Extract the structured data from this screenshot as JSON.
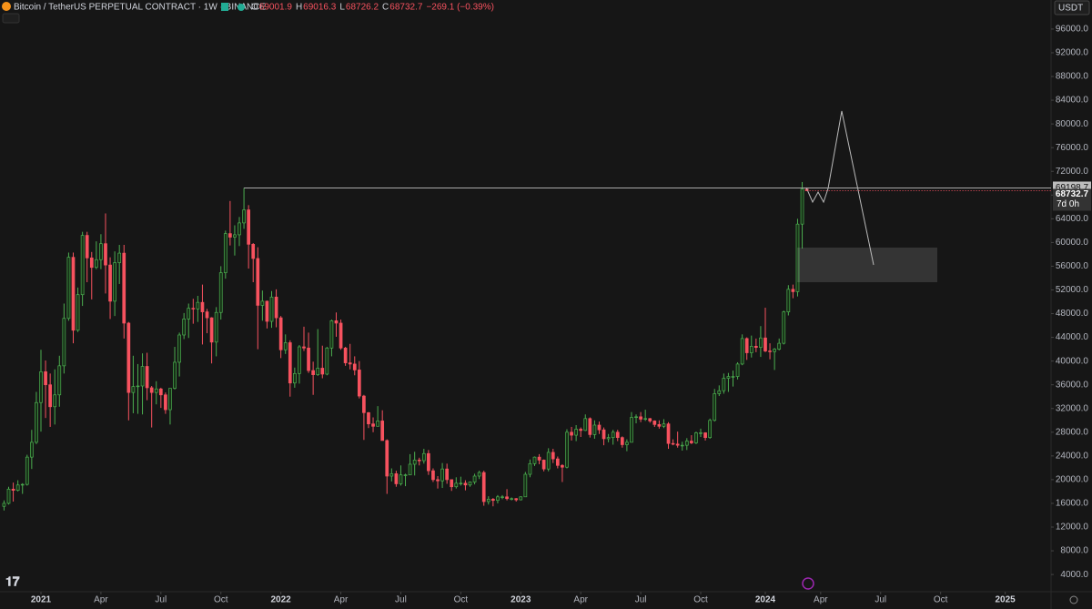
{
  "chart_data": {
    "type": "candlestick",
    "title": "Bitcoin / TetherUS PERPETUAL CONTRACT · 1W · BINANCE",
    "legend_keys": [
      "O",
      "H",
      "L",
      "C"
    ],
    "change": "−269.1 (−0.39%)",
    "currency": "USDT",
    "countdown": "7d 0h",
    "up_color": "#4caf50",
    "down_color": "#f7525f",
    "ylim": [
      1100,
      100900
    ],
    "yticks": [
      {
        "value": 4000,
        "label": "4000.0"
      },
      {
        "value": 8000,
        "label": "8000.0"
      },
      {
        "value": 12000,
        "label": "12000.0"
      },
      {
        "value": 16000,
        "label": "16000.0"
      },
      {
        "value": 20000,
        "label": "20000.0"
      },
      {
        "value": 24000,
        "label": "24000.0"
      },
      {
        "value": 28000,
        "label": "28000.0"
      },
      {
        "value": 32000,
        "label": "32000.0"
      },
      {
        "value": 36000,
        "label": "36000.0"
      },
      {
        "value": 40000,
        "label": "40000.0"
      },
      {
        "value": 44000,
        "label": "44000.0"
      },
      {
        "value": 48000,
        "label": "48000.0"
      },
      {
        "value": 52000,
        "label": "52000.0"
      },
      {
        "value": 56000,
        "label": "56000.0"
      },
      {
        "value": 60000,
        "label": "60000.0"
      },
      {
        "value": 64000,
        "label": "64000.0"
      },
      {
        "value": 68000,
        "label": "68000.0"
      },
      {
        "value": 72000,
        "label": "72000.0"
      },
      {
        "value": 76000,
        "label": "76000.0"
      },
      {
        "value": 80000,
        "label": "80000.0"
      },
      {
        "value": 84000,
        "label": "84000.0"
      },
      {
        "value": 88000,
        "label": "88000.0"
      },
      {
        "value": 92000,
        "label": "92000.0"
      },
      {
        "value": 96000,
        "label": "96000.0"
      }
    ],
    "xticks": [
      {
        "value": 8,
        "label": "2021"
      },
      {
        "value": 21,
        "label": "Apr"
      },
      {
        "value": 34,
        "label": "Jul"
      },
      {
        "value": 47,
        "label": "Oct"
      },
      {
        "value": 60,
        "label": "2022"
      },
      {
        "value": 73,
        "label": "Apr"
      },
      {
        "value": 86,
        "label": "Jul"
      },
      {
        "value": 99,
        "label": "Oct"
      },
      {
        "value": 112,
        "label": "2023"
      },
      {
        "value": 125,
        "label": "Apr"
      },
      {
        "value": 138,
        "label": "Jul"
      },
      {
        "value": 151,
        "label": "Oct"
      },
      {
        "value": 165,
        "label": "2024"
      },
      {
        "value": 177,
        "label": "Apr"
      },
      {
        "value": 190,
        "label": "Jul"
      },
      {
        "value": 203,
        "label": "Oct"
      },
      {
        "value": 217,
        "label": "2025"
      }
    ],
    "horizontal_line": 69198.7,
    "candles": [
      [
        15500,
        16500,
        14800,
        16000
      ],
      [
        16000,
        18800,
        15800,
        18400
      ],
      [
        18400,
        19500,
        16300,
        18200
      ],
      [
        18200,
        19900,
        18000,
        19100
      ],
      [
        19100,
        19400,
        17600,
        19200
      ],
      [
        19200,
        24200,
        19000,
        23800
      ],
      [
        23800,
        28400,
        21800,
        26300
      ],
      [
        26300,
        34800,
        26000,
        33000
      ],
      [
        33000,
        41900,
        28100,
        38200
      ],
      [
        38200,
        40100,
        30400,
        36000
      ],
      [
        36000,
        37900,
        28900,
        32300
      ],
      [
        32300,
        38600,
        29300,
        34300
      ],
      [
        34300,
        40900,
        32300,
        39200
      ],
      [
        39200,
        49700,
        37900,
        47200
      ],
      [
        47200,
        58300,
        46800,
        57500
      ],
      [
        57500,
        58300,
        43000,
        45200
      ],
      [
        45200,
        52400,
        44900,
        51200
      ],
      [
        51200,
        61800,
        49300,
        61200
      ],
      [
        61200,
        61800,
        53300,
        57400
      ],
      [
        57400,
        58400,
        50400,
        55800
      ],
      [
        55800,
        60200,
        55500,
        57100
      ],
      [
        57100,
        61400,
        55500,
        59800
      ],
      [
        59800,
        64900,
        51400,
        56200
      ],
      [
        56200,
        57500,
        47100,
        50100
      ],
      [
        50100,
        58500,
        47600,
        56600
      ],
      [
        56600,
        59600,
        53000,
        58200
      ],
      [
        58200,
        59600,
        43800,
        46400
      ],
      [
        46400,
        46600,
        30000,
        34700
      ],
      [
        34700,
        40900,
        31200,
        35700
      ],
      [
        35700,
        39500,
        31100,
        35800
      ],
      [
        35800,
        41300,
        31000,
        39100
      ],
      [
        39100,
        41400,
        33400,
        35500
      ],
      [
        35500,
        35800,
        28800,
        34700
      ],
      [
        34700,
        36600,
        32700,
        35300
      ],
      [
        35300,
        35500,
        32100,
        34300
      ],
      [
        34300,
        34700,
        31100,
        31800
      ],
      [
        31800,
        35400,
        29300,
        35400
      ],
      [
        35400,
        42400,
        35200,
        39800
      ],
      [
        39800,
        44800,
        37400,
        44400
      ],
      [
        44400,
        48100,
        43700,
        47100
      ],
      [
        47100,
        49700,
        43900,
        48900
      ],
      [
        48900,
        50500,
        46300,
        48800
      ],
      [
        48800,
        51000,
        46600,
        49900
      ],
      [
        49900,
        52900,
        42800,
        48300
      ],
      [
        48300,
        48800,
        44700,
        47300
      ],
      [
        47300,
        47400,
        39600,
        43200
      ],
      [
        43200,
        49100,
        40800,
        48200
      ],
      [
        48200,
        56000,
        47000,
        54900
      ],
      [
        54900,
        62000,
        53900,
        61500
      ],
      [
        61500,
        67000,
        59500,
        60900
      ],
      [
        60900,
        62900,
        57800,
        61300
      ],
      [
        61300,
        64300,
        59400,
        63300
      ],
      [
        63300,
        69198.7,
        62300,
        65500
      ],
      [
        65500,
        66300,
        55600,
        59700
      ],
      [
        59700,
        59900,
        53300,
        57300
      ],
      [
        57300,
        59200,
        42000,
        49400
      ],
      [
        49400,
        51900,
        46800,
        50100
      ],
      [
        50100,
        50200,
        45500,
        46700
      ],
      [
        46700,
        51800,
        45600,
        50800
      ],
      [
        50800,
        52100,
        45700,
        47300
      ],
      [
        47300,
        47600,
        40500,
        41900
      ],
      [
        41900,
        44500,
        41200,
        43100
      ],
      [
        43100,
        43500,
        34000,
        36300
      ],
      [
        36300,
        38900,
        35500,
        37900
      ],
      [
        37900,
        42700,
        36200,
        42400
      ],
      [
        42400,
        45800,
        41700,
        42200
      ],
      [
        42200,
        44800,
        38000,
        38400
      ],
      [
        38400,
        39900,
        34300,
        37700
      ],
      [
        37700,
        45400,
        37500,
        38800
      ],
      [
        38800,
        42600,
        37100,
        37800
      ],
      [
        37800,
        42400,
        37600,
        42200
      ],
      [
        42200,
        47000,
        40800,
        46800
      ],
      [
        46800,
        48200,
        44100,
        46400
      ],
      [
        46400,
        47000,
        41900,
        42200
      ],
      [
        42200,
        42400,
        39200,
        39700
      ],
      [
        39700,
        42900,
        38600,
        39500
      ],
      [
        39500,
        40800,
        37600,
        38500
      ],
      [
        38500,
        40000,
        33700,
        34100
      ],
      [
        34100,
        34300,
        26700,
        31300
      ],
      [
        31300,
        31400,
        28700,
        29400
      ],
      [
        29400,
        30500,
        28000,
        29000
      ],
      [
        29000,
        32400,
        29000,
        29900
      ],
      [
        29900,
        31700,
        26600,
        26600
      ],
      [
        26600,
        26800,
        17600,
        20600
      ],
      [
        20600,
        21900,
        19700,
        21000
      ],
      [
        21000,
        21500,
        18800,
        19300
      ],
      [
        19300,
        22400,
        19000,
        20800
      ],
      [
        20800,
        21000,
        18900,
        20800
      ],
      [
        20800,
        24300,
        20800,
        22600
      ],
      [
        22600,
        24700,
        20700,
        23300
      ],
      [
        23300,
        23700,
        22400,
        23200
      ],
      [
        23200,
        25200,
        22700,
        24400
      ],
      [
        24400,
        25000,
        20800,
        21500
      ],
      [
        21500,
        21900,
        19600,
        20000
      ],
      [
        20000,
        20600,
        18500,
        19800
      ],
      [
        19800,
        22800,
        18600,
        21800
      ],
      [
        21800,
        22700,
        19300,
        20000
      ],
      [
        20000,
        20000,
        18100,
        18800
      ],
      [
        18800,
        20400,
        18500,
        19400
      ],
      [
        19400,
        20500,
        19000,
        19400
      ],
      [
        19400,
        19900,
        18200,
        19100
      ],
      [
        19100,
        19700,
        18800,
        19600
      ],
      [
        19600,
        21000,
        19200,
        20600
      ],
      [
        20600,
        21500,
        20100,
        21200
      ],
      [
        21200,
        21500,
        15600,
        16300
      ],
      [
        16300,
        17200,
        15800,
        16700
      ],
      [
        16700,
        16900,
        15500,
        16500
      ],
      [
        16500,
        17400,
        16000,
        17100
      ],
      [
        17100,
        17400,
        16700,
        17100
      ],
      [
        17100,
        18400,
        16500,
        16800
      ],
      [
        16800,
        17000,
        16500,
        16800
      ],
      [
        16800,
        16900,
        16300,
        16600
      ],
      [
        16600,
        17200,
        16500,
        17100
      ],
      [
        17100,
        21300,
        17100,
        20900
      ],
      [
        20900,
        23400,
        20400,
        22700
      ],
      [
        22700,
        23900,
        22300,
        23800
      ],
      [
        23800,
        24300,
        22600,
        23300
      ],
      [
        23300,
        23400,
        21400,
        21800
      ],
      [
        21800,
        25300,
        21400,
        24600
      ],
      [
        24600,
        25200,
        22800,
        23500
      ],
      [
        23500,
        23900,
        21900,
        22400
      ],
      [
        22400,
        22600,
        19600,
        22100
      ],
      [
        22100,
        28500,
        21900,
        28000
      ],
      [
        28000,
        28900,
        26600,
        27500
      ],
      [
        27500,
        29200,
        26500,
        28500
      ],
      [
        28500,
        28800,
        27200,
        28300
      ],
      [
        28300,
        31000,
        28200,
        30300
      ],
      [
        30300,
        30500,
        27100,
        27600
      ],
      [
        27600,
        30000,
        26900,
        29200
      ],
      [
        29200,
        29800,
        27700,
        28400
      ],
      [
        28400,
        28800,
        25800,
        26900
      ],
      [
        26900,
        27700,
        26300,
        27100
      ],
      [
        27100,
        28400,
        25900,
        28000
      ],
      [
        28000,
        28400,
        26500,
        27100
      ],
      [
        27100,
        27300,
        25400,
        25900
      ],
      [
        25900,
        26800,
        24800,
        26300
      ],
      [
        26300,
        31400,
        26300,
        30500
      ],
      [
        30500,
        31000,
        29500,
        30600
      ],
      [
        30600,
        31400,
        29700,
        30200
      ],
      [
        30200,
        31800,
        29900,
        30300
      ],
      [
        30300,
        30400,
        29600,
        29900
      ],
      [
        29900,
        30000,
        28900,
        29300
      ],
      [
        29300,
        30000,
        28600,
        29000
      ],
      [
        29000,
        30200,
        28700,
        29400
      ],
      [
        29400,
        29700,
        25200,
        26100
      ],
      [
        26100,
        26800,
        25800,
        26000
      ],
      [
        26000,
        28100,
        25400,
        25800
      ],
      [
        25800,
        26400,
        24900,
        25800
      ],
      [
        25800,
        27000,
        25000,
        26500
      ],
      [
        26500,
        27500,
        26000,
        26200
      ],
      [
        26200,
        28100,
        26000,
        27900
      ],
      [
        27900,
        28600,
        27200,
        27900
      ],
      [
        27900,
        28000,
        26600,
        27100
      ],
      [
        27100,
        30300,
        26900,
        30000
      ],
      [
        30000,
        35300,
        29800,
        34500
      ],
      [
        34500,
        35900,
        34100,
        35000
      ],
      [
        35000,
        37900,
        34500,
        37100
      ],
      [
        37100,
        38000,
        34800,
        37400
      ],
      [
        37400,
        38400,
        35700,
        37400
      ],
      [
        37400,
        39800,
        36900,
        39500
      ],
      [
        39500,
        44500,
        39300,
        43800
      ],
      [
        43800,
        44000,
        40200,
        41400
      ],
      [
        41400,
        44300,
        40600,
        42500
      ],
      [
        42500,
        43800,
        41500,
        42300
      ],
      [
        42300,
        45900,
        40700,
        43900
      ],
      [
        43900,
        49000,
        41500,
        41700
      ],
      [
        41700,
        43000,
        40300,
        41600
      ],
      [
        41600,
        42200,
        38500,
        42000
      ],
      [
        42000,
        43800,
        41800,
        43000
      ],
      [
        43000,
        48500,
        42800,
        48300
      ],
      [
        48300,
        52800,
        47700,
        52100
      ],
      [
        52100,
        52900,
        50600,
        51700
      ],
      [
        51700,
        64000,
        50900,
        63100
      ],
      [
        63100,
        70200,
        59000,
        69001.9
      ],
      [
        69001.9,
        69016.3,
        68726.2,
        68732.7
      ]
    ]
  }
}
